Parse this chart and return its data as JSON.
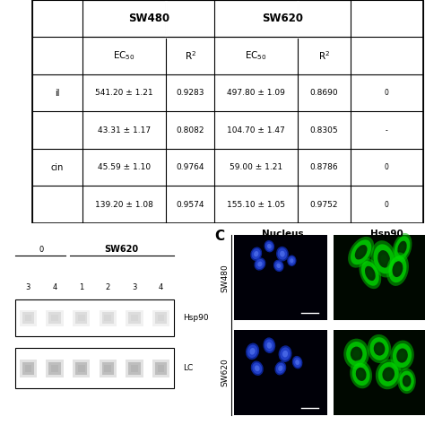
{
  "table": {
    "sw480_label": "SW480",
    "sw620_label": "SW620",
    "header2": [
      "EC₅₀",
      "R²",
      "EC₅₀",
      "R²"
    ],
    "row_labels": [
      "il",
      "",
      "cin",
      ""
    ],
    "sw480_ec50": [
      "541.20 ± 1.21",
      "43.31 ± 1.17",
      "45.59 ± 1.10",
      "139.20 ± 1.08"
    ],
    "sw480_r2": [
      "0.9283",
      "0.8082",
      "0.9764",
      "0.9574"
    ],
    "sw620_ec50": [
      "497.80 ± 1.09",
      "104.70 ± 1.47",
      "59.00 ± 1.21",
      "155.10 ± 1.05"
    ],
    "sw620_r2": [
      "0.8690",
      "0.8305",
      "0.8786",
      "0.9752"
    ]
  },
  "western": {
    "sw620_label": "SW620",
    "lanes_left": [
      "3",
      "4"
    ],
    "lanes_right": [
      "1",
      "2",
      "3",
      "4"
    ],
    "band_labels": [
      "Hsp90",
      "LC"
    ]
  },
  "fluor": {
    "panel_label": "C",
    "col_labels": [
      "Nucleus",
      "Hsp90"
    ],
    "row_labels": [
      "SW480",
      "SW620"
    ]
  },
  "colors": {
    "bg": "#ffffff",
    "border": "#000000",
    "nucleus_bg": "#000005",
    "hsp90_bg": "#000500",
    "nucleus_core": "#3355ff",
    "nucleus_bright": "#6688ff",
    "hsp90_outer": "#00aa00",
    "hsp90_mid": "#00cc00",
    "hsp90_inner": "#00ff44"
  }
}
